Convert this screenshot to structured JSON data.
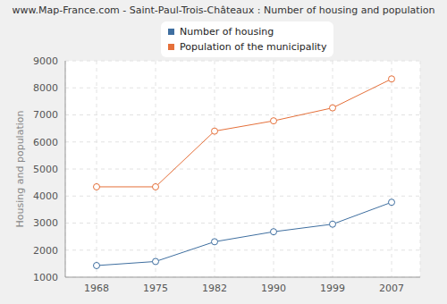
{
  "chart_data": {
    "type": "line",
    "title": "www.Map-France.com - Saint-Paul-Trois-Châteaux : Number of housing and population",
    "y_label": "Housing and population",
    "categories": [
      "1968",
      "1975",
      "1982",
      "1990",
      "1999",
      "2007"
    ],
    "series": [
      {
        "name": "Number of housing",
        "color": "#3f6fa0",
        "marker": "circle",
        "values": [
          1430,
          1580,
          2310,
          2680,
          2960,
          3770
        ]
      },
      {
        "name": "Population of the municipality",
        "color": "#e5703a",
        "marker": "circle",
        "values": [
          4340,
          4340,
          6400,
          6780,
          7260,
          8330
        ]
      }
    ],
    "ylim": [
      1000,
      9000
    ],
    "yticks": [
      1000,
      2000,
      3000,
      4000,
      5000,
      6000,
      7000,
      8000,
      9000
    ],
    "grid": true,
    "legend": "top"
  }
}
